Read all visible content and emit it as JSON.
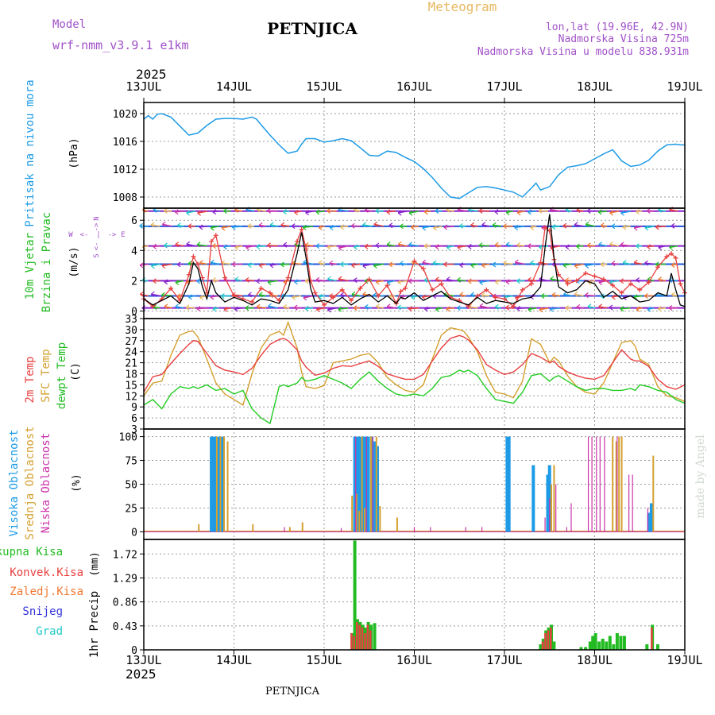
{
  "header": {
    "model_label": "Model",
    "model_name": "wrf-nmm_v3.9.1 e1km",
    "station": "PETNJICA",
    "title": "Meteogram",
    "lonlat": "lon,lat (19.96E, 42.9N)",
    "elev": "Nadmorska Visina 725m",
    "elev_model": "Nadmorska Visina u modelu 838.931m",
    "year": "2025",
    "footer_station": "PETNJICA",
    "watermark": "made by Angel"
  },
  "colors": {
    "pressure": "#1e9be6",
    "t2m": "#e84040",
    "sfc": "#d4a030",
    "dew": "#22cc22",
    "wind_black": "#000000",
    "wind_red": "#e84040",
    "cloud_high": "#1e9be6",
    "cloud_mid": "#d4a030",
    "cloud_low": "#cc33aa",
    "rain_total": "#22bb22",
    "rain_conv": "#e84040",
    "rain_frz": "#f07830",
    "snow": "#3333dd",
    "hail": "#22c8c8",
    "label_model": "#a050c8",
    "label_title": "#e8b860"
  },
  "x_axis": {
    "days": [
      "13JUL",
      "14JUL",
      "15JUL",
      "16JUL",
      "17JUL",
      "18JUL",
      "19JUL"
    ]
  },
  "chart_data": [
    {
      "type": "line",
      "panel": "pressure",
      "ylabel": "Pritisak na nivou mora",
      "unit": "(hPa)",
      "ylim": [
        1006.4,
        1021.6
      ],
      "yticks": [
        "1008",
        "1012",
        "1016",
        "1020"
      ],
      "ytick_values": [
        1008,
        1012,
        1016,
        1020
      ],
      "x_days": [
        0,
        0.05,
        0.1,
        0.15,
        0.2,
        0.3,
        0.4,
        0.5,
        0.6,
        0.7,
        0.8,
        0.9,
        1.0,
        1.1,
        1.2,
        1.25,
        1.3,
        1.4,
        1.5,
        1.6,
        1.7,
        1.75,
        1.8,
        1.9,
        2.0,
        2.1,
        2.2,
        2.3,
        2.4,
        2.5,
        2.6,
        2.7,
        2.8,
        2.9,
        3.0,
        3.1,
        3.2,
        3.3,
        3.4,
        3.5,
        3.6,
        3.7,
        3.8,
        3.9,
        4.0,
        4.1,
        4.2,
        4.3,
        4.35,
        4.4,
        4.5,
        4.6,
        4.7,
        4.8,
        4.9,
        5.0,
        5.1,
        5.2,
        5.25,
        5.3,
        5.4,
        5.5,
        5.6,
        5.7,
        5.8,
        5.9,
        5.95,
        6.0
      ],
      "values": [
        1019.2,
        1019.7,
        1019.2,
        1019.9,
        1020.0,
        1019.5,
        1018.2,
        1016.9,
        1017.2,
        1018.3,
        1019.2,
        1019.3,
        1019.3,
        1019.2,
        1019.5,
        1019.2,
        1018.4,
        1016.9,
        1015.5,
        1014.3,
        1014.6,
        1015.6,
        1016.4,
        1016.4,
        1015.9,
        1016.1,
        1016.4,
        1016.1,
        1015.1,
        1014.0,
        1013.9,
        1014.6,
        1014.4,
        1013.7,
        1013.1,
        1012.1,
        1010.8,
        1009.3,
        1008.0,
        1007.8,
        1008.6,
        1009.4,
        1009.5,
        1009.3,
        1009.0,
        1008.7,
        1008.0,
        1009.3,
        1010.0,
        1009.0,
        1009.5,
        1011.2,
        1012.3,
        1012.5,
        1012.8,
        1013.5,
        1014.2,
        1014.8,
        1014.0,
        1013.2,
        1012.4,
        1012.6,
        1013.3,
        1014.6,
        1015.5,
        1015.6,
        1015.5,
        1015.5
      ]
    },
    {
      "type": "line",
      "panel": "wind",
      "ylabel": "10m Vjetar",
      "ylabel2": "Brzina i Pravac",
      "unit": "(m/s)",
      "compass": {
        "n": "N",
        "s": "S",
        "w": "W",
        "e": "E",
        "arrow_l": "<-",
        "arrow_r": "->"
      },
      "ylim": [
        -0.5,
        6.8
      ],
      "yticks": [
        "0",
        "2",
        "4",
        "6"
      ],
      "ytick_values": [
        0,
        2,
        4,
        6
      ],
      "x_days": [
        0,
        0.1,
        0.2,
        0.3,
        0.4,
        0.5,
        0.55,
        0.6,
        0.65,
        0.7,
        0.75,
        0.8,
        0.9,
        1.0,
        1.1,
        1.2,
        1.3,
        1.4,
        1.5,
        1.6,
        1.7,
        1.75,
        1.8,
        1.85,
        1.9,
        2.0,
        2.1,
        2.2,
        2.3,
        2.4,
        2.5,
        2.6,
        2.7,
        2.8,
        2.85,
        2.9,
        3.0,
        3.1,
        3.2,
        3.3,
        3.4,
        3.5,
        3.6,
        3.7,
        3.8,
        3.9,
        4.0,
        4.1,
        4.2,
        4.3,
        4.4,
        4.45,
        4.5,
        4.55,
        4.6,
        4.7,
        4.8,
        4.9,
        5.0,
        5.1,
        5.2,
        5.3,
        5.4,
        5.5,
        5.6,
        5.7,
        5.8,
        5.85,
        5.9,
        5.95,
        6.0
      ],
      "speed": [
        0.8,
        0.4,
        0.7,
        1.0,
        0.5,
        1.8,
        3.2,
        2.8,
        1.6,
        0.8,
        2.0,
        1.2,
        0.6,
        0.9,
        0.7,
        0.4,
        0.8,
        0.7,
        0.5,
        1.4,
        3.8,
        5.2,
        3.5,
        1.5,
        0.6,
        0.7,
        0.5,
        0.9,
        0.4,
        0.8,
        1.1,
        0.6,
        1.0,
        0.5,
        0.9,
        0.8,
        1.2,
        0.7,
        1.0,
        1.3,
        0.8,
        0.6,
        0.4,
        0.9,
        0.5,
        0.7,
        0.6,
        0.5,
        0.8,
        0.9,
        1.6,
        4.2,
        6.4,
        3.5,
        1.6,
        1.2,
        1.4,
        2.0,
        1.8,
        0.9,
        1.3,
        0.8,
        1.0,
        0.6,
        0.7,
        1.2,
        1.0,
        2.5,
        1.4,
        0.4,
        0.3
      ],
      "gust": [
        0.8,
        0.3,
        0.8,
        1.5,
        0.7,
        2.4,
        3.6,
        3.1,
        2.2,
        1.2,
        4.6,
        5.0,
        2.2,
        1.0,
        0.8,
        0.6,
        1.5,
        1.2,
        0.7,
        2.2,
        4.6,
        5.4,
        4.1,
        2.0,
        1.2,
        0.4,
        0.9,
        1.4,
        0.7,
        1.5,
        2.1,
        1.0,
        1.7,
        0.5,
        1.3,
        1.5,
        3.3,
        2.8,
        1.4,
        1.8,
        0.9,
        0.7,
        0.3,
        1.0,
        1.4,
        0.9,
        0.8,
        0.3,
        1.4,
        1.8,
        3.2,
        5.5,
        5.3,
        3.4,
        2.4,
        1.8,
        2.0,
        2.5,
        2.3,
        2.1,
        1.7,
        1.2,
        1.8,
        1.4,
        1.9,
        2.9,
        3.6,
        3.8,
        3.5,
        1.8,
        1.2
      ],
      "barb_rows": [
        0.2,
        1.0,
        2.0,
        3.1,
        4.3,
        5.6,
        6.6
      ]
    },
    {
      "type": "line",
      "panel": "temperature",
      "ylabel": "2m Temp",
      "ylabel2": "SFC Temp",
      "ylabel3": "dewpt Temp",
      "unit": "(C)",
      "ylim": [
        3,
        33
      ],
      "yticks": [
        "3",
        "6",
        "9",
        "12",
        "15",
        "18",
        "21",
        "24",
        "27",
        "30",
        "33"
      ],
      "ytick_values": [
        3,
        6,
        9,
        12,
        15,
        18,
        21,
        24,
        27,
        30,
        33
      ],
      "x_days": [
        0,
        0.1,
        0.2,
        0.3,
        0.4,
        0.5,
        0.55,
        0.6,
        0.7,
        0.8,
        0.9,
        1.0,
        1.1,
        1.2,
        1.3,
        1.4,
        1.5,
        1.55,
        1.6,
        1.7,
        1.75,
        1.8,
        1.9,
        2.0,
        2.1,
        2.2,
        2.3,
        2.4,
        2.5,
        2.6,
        2.7,
        2.8,
        2.9,
        3.0,
        3.1,
        3.2,
        3.3,
        3.4,
        3.5,
        3.55,
        3.6,
        3.7,
        3.8,
        3.9,
        4.0,
        4.1,
        4.2,
        4.3,
        4.4,
        4.5,
        4.55,
        4.6,
        4.7,
        4.8,
        4.9,
        5.0,
        5.1,
        5.2,
        5.3,
        5.4,
        5.45,
        5.5,
        5.6,
        5.7,
        5.8,
        5.9,
        6.0
      ],
      "t2m": [
        13.0,
        17.2,
        17.8,
        20.8,
        23.5,
        26.0,
        27.0,
        26.8,
        23.5,
        20.2,
        19.0,
        18.5,
        17.8,
        19.5,
        23.0,
        26.0,
        27.3,
        27.6,
        27.0,
        24.5,
        21.5,
        19.8,
        17.6,
        18.2,
        19.5,
        20.2,
        20.0,
        20.8,
        21.5,
        20.0,
        18.0,
        17.2,
        16.5,
        16.5,
        17.8,
        21.5,
        25.0,
        27.6,
        28.4,
        28.0,
        27.2,
        24.5,
        20.5,
        19.0,
        17.8,
        18.5,
        20.5,
        23.5,
        22.5,
        21.0,
        21.5,
        20.0,
        18.5,
        17.5,
        16.8,
        16.5,
        17.5,
        21.0,
        24.5,
        22.0,
        21.5,
        21.5,
        20.0,
        16.5,
        14.5,
        13.8,
        15.0
      ],
      "sfc": [
        12.0,
        15.5,
        16.0,
        23.0,
        28.5,
        29.5,
        29.5,
        28.0,
        22.0,
        15.5,
        12.5,
        11.0,
        9.5,
        18.0,
        25.0,
        28.5,
        29.5,
        28.5,
        32.0,
        25.0,
        18.5,
        14.5,
        14.0,
        14.8,
        21.0,
        21.5,
        22.0,
        23.0,
        23.5,
        21.0,
        17.0,
        15.0,
        13.5,
        13.0,
        15.0,
        22.0,
        28.5,
        30.5,
        30.0,
        29.5,
        28.0,
        24.0,
        17.5,
        13.0,
        12.5,
        11.5,
        16.0,
        27.5,
        26.0,
        21.0,
        22.5,
        21.5,
        17.5,
        14.5,
        13.0,
        12.5,
        15.5,
        21.0,
        26.5,
        27.0,
        25.5,
        22.0,
        20.5,
        14.5,
        12.0,
        11.5,
        10.5
      ],
      "dew": [
        9.5,
        11.0,
        8.5,
        12.5,
        14.5,
        14.0,
        14.5,
        14.0,
        15.0,
        13.5,
        14.0,
        12.5,
        13.5,
        8.5,
        6.0,
        4.5,
        14.5,
        15.0,
        14.5,
        15.5,
        17.0,
        16.0,
        16.5,
        17.5,
        16.5,
        15.5,
        14.0,
        16.5,
        18.5,
        16.0,
        14.0,
        12.5,
        12.0,
        12.5,
        12.0,
        14.0,
        17.0,
        17.5,
        19.0,
        18.5,
        19.0,
        17.5,
        14.0,
        11.0,
        10.5,
        10.0,
        13.0,
        17.5,
        18.0,
        16.0,
        17.0,
        17.5,
        16.0,
        14.5,
        13.5,
        14.0,
        14.0,
        13.5,
        13.5,
        14.0,
        13.5,
        15.0,
        14.5,
        13.5,
        13.0,
        11.0,
        10.0
      ]
    },
    {
      "type": "bar",
      "panel": "clouds",
      "ylabel": "Visoka Oblacnost",
      "ylabel2": "Srednja Oblacnost",
      "ylabel3": "Niska Oblacnost",
      "unit": "(%)",
      "ylim": [
        -8,
        108
      ],
      "yticks": [
        "0",
        "25",
        "50",
        "75",
        "100"
      ],
      "ytick_values": [
        0,
        25,
        50,
        75,
        100
      ],
      "high": [
        [
          0.75,
          100
        ],
        [
          0.77,
          100
        ],
        [
          0.79,
          100
        ],
        [
          0.83,
          100
        ],
        [
          0.87,
          100
        ],
        [
          2.34,
          100
        ],
        [
          2.37,
          100
        ],
        [
          2.4,
          100
        ],
        [
          2.43,
          100
        ],
        [
          2.46,
          100
        ],
        [
          2.49,
          100
        ],
        [
          2.53,
          100
        ],
        [
          2.56,
          95
        ],
        [
          2.59,
          90
        ],
        [
          4.03,
          100
        ],
        [
          4.05,
          100
        ],
        [
          4.32,
          70
        ],
        [
          4.48,
          60
        ],
        [
          4.5,
          70
        ],
        [
          5.6,
          20
        ],
        [
          5.63,
          30
        ]
      ],
      "mid": [
        [
          0.61,
          8
        ],
        [
          0.81,
          100
        ],
        [
          0.85,
          100
        ],
        [
          0.89,
          100
        ],
        [
          0.93,
          95
        ],
        [
          1.21,
          8
        ],
        [
          1.62,
          5
        ],
        [
          1.76,
          10
        ],
        [
          2.31,
          38
        ],
        [
          2.36,
          40
        ],
        [
          2.39,
          22
        ],
        [
          2.42,
          100
        ],
        [
          2.45,
          25
        ],
        [
          2.52,
          100
        ],
        [
          2.58,
          100
        ],
        [
          2.62,
          27
        ],
        [
          2.81,
          15
        ],
        [
          4.52,
          50
        ],
        [
          4.55,
          70
        ],
        [
          5.2,
          100
        ],
        [
          5.24,
          95
        ],
        [
          5.27,
          100
        ],
        [
          5.3,
          100
        ],
        [
          5.65,
          80
        ]
      ],
      "low": [
        [
          1.56,
          5
        ],
        [
          2.19,
          4
        ],
        [
          2.35,
          100
        ],
        [
          2.47,
          100
        ],
        [
          2.54,
          100
        ],
        [
          3.0,
          5
        ],
        [
          3.18,
          5
        ],
        [
          3.57,
          5
        ],
        [
          3.75,
          5
        ],
        [
          4.45,
          15
        ],
        [
          4.5,
          35
        ],
        [
          4.57,
          50
        ],
        [
          4.69,
          5
        ],
        [
          4.74,
          30
        ],
        [
          4.93,
          100
        ],
        [
          4.97,
          100
        ],
        [
          5.02,
          100
        ],
        [
          5.06,
          100
        ],
        [
          5.11,
          100
        ],
        [
          5.25,
          100
        ],
        [
          5.38,
          60
        ],
        [
          5.42,
          60
        ],
        [
          5.59,
          25
        ]
      ]
    },
    {
      "type": "bar",
      "panel": "precip",
      "labels": [
        "Ukupna Kisa",
        "Konvek.Kisa",
        "Zaledj.Kisa",
        "Snijeg",
        "Grad"
      ],
      "ylabel": "1hr Precip",
      "unit": "(mm)",
      "ylim": [
        0,
        1.98
      ],
      "yticks": [
        "0",
        "0.43",
        "0.86",
        "1.29",
        "1.72"
      ],
      "ytick_values": [
        0,
        0.43,
        0.86,
        1.29,
        1.72
      ],
      "total": [
        [
          2.31,
          0.3
        ],
        [
          2.34,
          1.96
        ],
        [
          2.37,
          0.55
        ],
        [
          2.4,
          0.5
        ],
        [
          2.43,
          0.45
        ],
        [
          2.46,
          0.4
        ],
        [
          2.49,
          0.5
        ],
        [
          2.52,
          0.45
        ],
        [
          2.56,
          0.48
        ],
        [
          4.4,
          0.1
        ],
        [
          4.43,
          0.2
        ],
        [
          4.46,
          0.35
        ],
        [
          4.49,
          0.4
        ],
        [
          4.52,
          0.45
        ],
        [
          4.55,
          0.15
        ],
        [
          4.85,
          0.05
        ],
        [
          4.9,
          0.05
        ],
        [
          4.95,
          0.15
        ],
        [
          4.98,
          0.25
        ],
        [
          5.01,
          0.3
        ],
        [
          5.05,
          0.15
        ],
        [
          5.09,
          0.2
        ],
        [
          5.13,
          0.15
        ],
        [
          5.17,
          0.25
        ],
        [
          5.21,
          0.1
        ],
        [
          5.25,
          0.3
        ],
        [
          5.29,
          0.25
        ],
        [
          5.33,
          0.25
        ],
        [
          5.58,
          0.1
        ],
        [
          5.64,
          0.45
        ],
        [
          5.7,
          0.1
        ]
      ],
      "conv": [
        [
          2.31,
          0.3
        ],
        [
          2.34,
          0.25
        ],
        [
          2.37,
          0.5
        ],
        [
          2.4,
          0.45
        ],
        [
          2.43,
          0.4
        ],
        [
          2.46,
          0.3
        ],
        [
          2.49,
          0.45
        ],
        [
          2.52,
          0.35
        ],
        [
          4.43,
          0.15
        ],
        [
          4.46,
          0.3
        ],
        [
          4.49,
          0.35
        ],
        [
          4.52,
          0.4
        ],
        [
          5.64,
          0.4
        ]
      ]
    }
  ]
}
